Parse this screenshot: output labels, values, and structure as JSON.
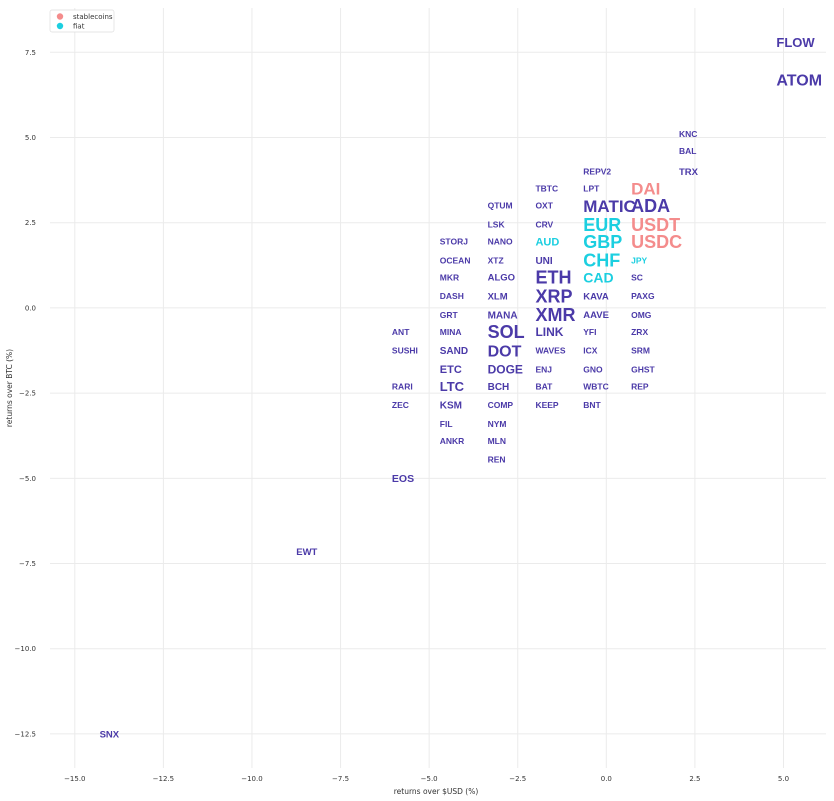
{
  "chart_data": {
    "type": "scatter",
    "title": "",
    "xlabel": "returns over $USD (%)",
    "ylabel": "returns over BTC (%)",
    "xlim": [
      -15.7,
      6.2
    ],
    "ylim": [
      -13.5,
      8.8
    ],
    "xticks": [
      -15.0,
      -12.5,
      -10.0,
      -7.5,
      -5.0,
      -2.5,
      0.0,
      2.5,
      5.0
    ],
    "yticks": [
      -12.5,
      -10.0,
      -7.5,
      -5.0,
      -2.5,
      0.0,
      2.5,
      5.0,
      7.5
    ],
    "xtick_labels": [
      "−15.0",
      "−12.5",
      "−10.0",
      "−7.5",
      "−5.0",
      "−2.5",
      "0.0",
      "2.5",
      "5.0"
    ],
    "ytick_labels": [
      "−12.5",
      "−10.0",
      "−7.5",
      "−5.0",
      "−2.5",
      "0.0",
      "2.5",
      "5.0",
      "7.5"
    ],
    "grid": true,
    "legend": {
      "placement": "top-left",
      "entries": [
        {
          "name": "stablecoins",
          "color": "#f48c8c"
        },
        {
          "name": "fiat",
          "color": "#1ccfe0"
        }
      ]
    },
    "colors": {
      "crypto": "#4b3aa8",
      "stablecoins": "#f48c8c",
      "fiat": "#1ccfe0"
    },
    "points": [
      {
        "label": "FLOW",
        "x": 4.8,
        "y": 7.8,
        "size": 13,
        "group": "crypto"
      },
      {
        "label": "ATOM",
        "x": 4.8,
        "y": 6.7,
        "size": 16,
        "group": "crypto"
      },
      {
        "label": "KNC",
        "x": 2.05,
        "y": 5.1,
        "size": 8.5,
        "group": "crypto"
      },
      {
        "label": "BAL",
        "x": 2.05,
        "y": 4.6,
        "size": 8.5,
        "group": "crypto"
      },
      {
        "label": "TRX",
        "x": 2.05,
        "y": 4.0,
        "size": 9.5,
        "group": "crypto"
      },
      {
        "label": "REPV2",
        "x": -0.65,
        "y": 4.0,
        "size": 8.5,
        "group": "crypto"
      },
      {
        "label": "TBTC",
        "x": -2.0,
        "y": 3.5,
        "size": 8.5,
        "group": "crypto"
      },
      {
        "label": "LPT",
        "x": -0.65,
        "y": 3.5,
        "size": 8.5,
        "group": "crypto"
      },
      {
        "label": "DAI",
        "x": 0.7,
        "y": 3.5,
        "size": 17,
        "group": "stablecoins"
      },
      {
        "label": "QTUM",
        "x": -3.35,
        "y": 3.0,
        "size": 8.5,
        "group": "crypto"
      },
      {
        "label": "OXT",
        "x": -2.0,
        "y": 3.0,
        "size": 8.5,
        "group": "crypto"
      },
      {
        "label": "MATIC",
        "x": -0.65,
        "y": 3.0,
        "size": 17,
        "group": "crypto"
      },
      {
        "label": "ADA",
        "x": 0.7,
        "y": 3.0,
        "size": 18,
        "group": "crypto"
      },
      {
        "label": "LSK",
        "x": -3.35,
        "y": 2.45,
        "size": 8.5,
        "group": "crypto"
      },
      {
        "label": "CRV",
        "x": -2.0,
        "y": 2.45,
        "size": 8.5,
        "group": "crypto"
      },
      {
        "label": "EUR",
        "x": -0.65,
        "y": 2.45,
        "size": 18,
        "group": "fiat"
      },
      {
        "label": "USDT",
        "x": 0.7,
        "y": 2.45,
        "size": 18,
        "group": "stablecoins"
      },
      {
        "label": "STORJ",
        "x": -4.7,
        "y": 1.95,
        "size": 8.5,
        "group": "crypto"
      },
      {
        "label": "NANO",
        "x": -3.35,
        "y": 1.95,
        "size": 8.5,
        "group": "crypto"
      },
      {
        "label": "AUD",
        "x": -2.0,
        "y": 1.95,
        "size": 11,
        "group": "fiat"
      },
      {
        "label": "GBP",
        "x": -0.65,
        "y": 1.95,
        "size": 18,
        "group": "fiat"
      },
      {
        "label": "USDC",
        "x": 0.7,
        "y": 1.95,
        "size": 18,
        "group": "stablecoins"
      },
      {
        "label": "OCEAN",
        "x": -4.7,
        "y": 1.4,
        "size": 8.5,
        "group": "crypto"
      },
      {
        "label": "XTZ",
        "x": -3.35,
        "y": 1.4,
        "size": 8.5,
        "group": "crypto"
      },
      {
        "label": "UNI",
        "x": -2.0,
        "y": 1.4,
        "size": 10,
        "group": "crypto"
      },
      {
        "label": "CHF",
        "x": -0.65,
        "y": 1.4,
        "size": 18,
        "group": "fiat"
      },
      {
        "label": "JPY",
        "x": 0.7,
        "y": 1.4,
        "size": 8.5,
        "group": "fiat"
      },
      {
        "label": "MKR",
        "x": -4.7,
        "y": 0.9,
        "size": 8.5,
        "group": "crypto"
      },
      {
        "label": "ALGO",
        "x": -3.35,
        "y": 0.9,
        "size": 9.5,
        "group": "crypto"
      },
      {
        "label": "ETH",
        "x": -2.0,
        "y": 0.9,
        "size": 18,
        "group": "crypto"
      },
      {
        "label": "CAD",
        "x": -0.65,
        "y": 0.9,
        "size": 14,
        "group": "fiat"
      },
      {
        "label": "SC",
        "x": 0.7,
        "y": 0.9,
        "size": 8.5,
        "group": "crypto"
      },
      {
        "label": "DASH",
        "x": -4.7,
        "y": 0.35,
        "size": 8.5,
        "group": "crypto"
      },
      {
        "label": "XLM",
        "x": -3.35,
        "y": 0.35,
        "size": 9.5,
        "group": "crypto"
      },
      {
        "label": "XRP",
        "x": -2.0,
        "y": 0.35,
        "size": 18,
        "group": "crypto"
      },
      {
        "label": "KAVA",
        "x": -0.65,
        "y": 0.35,
        "size": 9.5,
        "group": "crypto"
      },
      {
        "label": "PAXG",
        "x": 0.7,
        "y": 0.35,
        "size": 8.5,
        "group": "crypto"
      },
      {
        "label": "GRT",
        "x": -4.7,
        "y": -0.2,
        "size": 8.5,
        "group": "crypto"
      },
      {
        "label": "MANA",
        "x": -3.35,
        "y": -0.2,
        "size": 10,
        "group": "crypto"
      },
      {
        "label": "XMR",
        "x": -2.0,
        "y": -0.2,
        "size": 18,
        "group": "crypto"
      },
      {
        "label": "AAVE",
        "x": -0.65,
        "y": -0.2,
        "size": 9.5,
        "group": "crypto"
      },
      {
        "label": "OMG",
        "x": 0.7,
        "y": -0.2,
        "size": 8.5,
        "group": "crypto"
      },
      {
        "label": "ANT",
        "x": -6.05,
        "y": -0.7,
        "size": 8.5,
        "group": "crypto"
      },
      {
        "label": "MINA",
        "x": -4.7,
        "y": -0.7,
        "size": 8.5,
        "group": "crypto"
      },
      {
        "label": "SOL",
        "x": -3.35,
        "y": -0.7,
        "size": 18,
        "group": "crypto"
      },
      {
        "label": "LINK",
        "x": -2.0,
        "y": -0.7,
        "size": 12,
        "group": "crypto"
      },
      {
        "label": "YFI",
        "x": -0.65,
        "y": -0.7,
        "size": 8.5,
        "group": "crypto"
      },
      {
        "label": "ZRX",
        "x": 0.7,
        "y": -0.7,
        "size": 8.5,
        "group": "crypto"
      },
      {
        "label": "SUSHI",
        "x": -6.05,
        "y": -1.25,
        "size": 8.5,
        "group": "crypto"
      },
      {
        "label": "SAND",
        "x": -4.7,
        "y": -1.25,
        "size": 10,
        "group": "crypto"
      },
      {
        "label": "DOT",
        "x": -3.35,
        "y": -1.25,
        "size": 16,
        "group": "crypto"
      },
      {
        "label": "WAVES",
        "x": -2.0,
        "y": -1.25,
        "size": 8.5,
        "group": "crypto"
      },
      {
        "label": "ICX",
        "x": -0.65,
        "y": -1.25,
        "size": 8.5,
        "group": "crypto"
      },
      {
        "label": "SRM",
        "x": 0.7,
        "y": -1.25,
        "size": 8.5,
        "group": "crypto"
      },
      {
        "label": "ETC",
        "x": -4.7,
        "y": -1.8,
        "size": 11,
        "group": "crypto"
      },
      {
        "label": "DOGE",
        "x": -3.35,
        "y": -1.8,
        "size": 12,
        "group": "crypto"
      },
      {
        "label": "ENJ",
        "x": -2.0,
        "y": -1.8,
        "size": 8.5,
        "group": "crypto"
      },
      {
        "label": "GNO",
        "x": -0.65,
        "y": -1.8,
        "size": 8.5,
        "group": "crypto"
      },
      {
        "label": "GHST",
        "x": 0.7,
        "y": -1.8,
        "size": 8.5,
        "group": "crypto"
      },
      {
        "label": "RARI",
        "x": -6.05,
        "y": -2.3,
        "size": 8.5,
        "group": "crypto"
      },
      {
        "label": "LTC",
        "x": -4.7,
        "y": -2.3,
        "size": 13,
        "group": "crypto"
      },
      {
        "label": "BCH",
        "x": -3.35,
        "y": -2.3,
        "size": 10,
        "group": "crypto"
      },
      {
        "label": "BAT",
        "x": -2.0,
        "y": -2.3,
        "size": 8.5,
        "group": "crypto"
      },
      {
        "label": "WBTC",
        "x": -0.65,
        "y": -2.3,
        "size": 8.5,
        "group": "crypto"
      },
      {
        "label": "REP",
        "x": 0.7,
        "y": -2.3,
        "size": 8.5,
        "group": "crypto"
      },
      {
        "label": "ZEC",
        "x": -6.05,
        "y": -2.85,
        "size": 8.5,
        "group": "crypto"
      },
      {
        "label": "KSM",
        "x": -4.7,
        "y": -2.85,
        "size": 10,
        "group": "crypto"
      },
      {
        "label": "COMP",
        "x": -3.35,
        "y": -2.85,
        "size": 8.5,
        "group": "crypto"
      },
      {
        "label": "KEEP",
        "x": -2.0,
        "y": -2.85,
        "size": 8.5,
        "group": "crypto"
      },
      {
        "label": "BNT",
        "x": -0.65,
        "y": -2.85,
        "size": 8.5,
        "group": "crypto"
      },
      {
        "label": "FIL",
        "x": -4.7,
        "y": -3.4,
        "size": 8.5,
        "group": "crypto"
      },
      {
        "label": "NYM",
        "x": -3.35,
        "y": -3.4,
        "size": 8.5,
        "group": "crypto"
      },
      {
        "label": "ANKR",
        "x": -4.7,
        "y": -3.9,
        "size": 8.5,
        "group": "crypto"
      },
      {
        "label": "MLN",
        "x": -3.35,
        "y": -3.9,
        "size": 8.5,
        "group": "crypto"
      },
      {
        "label": "REN",
        "x": -3.35,
        "y": -4.45,
        "size": 8.5,
        "group": "crypto"
      },
      {
        "label": "EOS",
        "x": -6.05,
        "y": -5.0,
        "size": 10.5,
        "group": "crypto"
      },
      {
        "label": "EWT",
        "x": -8.75,
        "y": -7.15,
        "size": 9.5,
        "group": "crypto"
      },
      {
        "label": "SNX",
        "x": -14.3,
        "y": -12.5,
        "size": 9.5,
        "group": "crypto"
      }
    ]
  }
}
